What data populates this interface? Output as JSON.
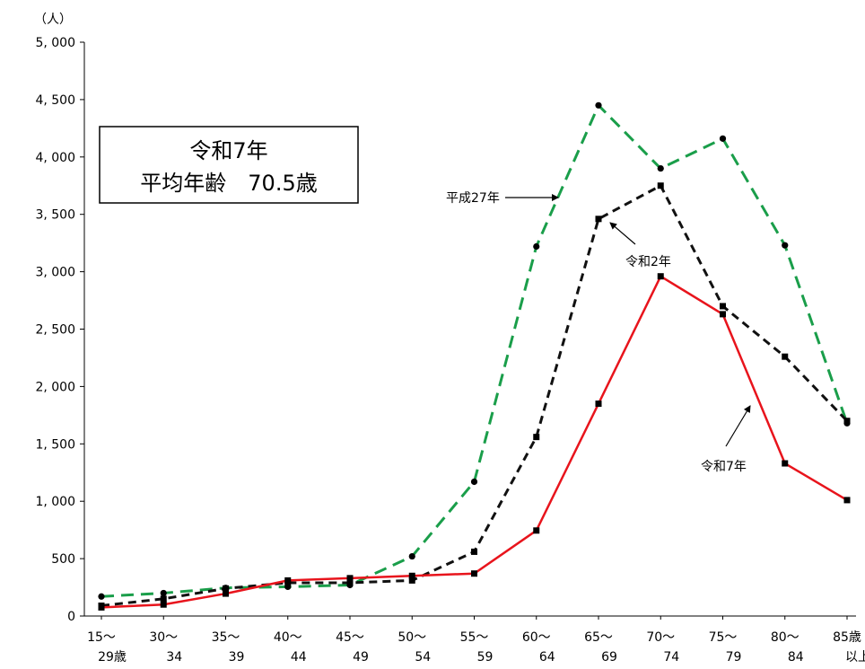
{
  "chart_data": {
    "type": "line",
    "unit_label": "（人）",
    "ylim": [
      0,
      5000
    ],
    "yticks": [
      0,
      500,
      1000,
      1500,
      2000,
      2500,
      3000,
      3500,
      4000,
      4500,
      5000
    ],
    "ytick_labels": [
      "0",
      "500",
      "1, 000",
      "1, 500",
      "2, 000",
      "2, 500",
      "3, 000",
      "3, 500",
      "4, 000",
      "4, 500",
      "5, 000"
    ],
    "categories": [
      "15～29歳",
      "30～34",
      "35～39",
      "40～44",
      "45～49",
      "50～54",
      "55～59",
      "60～64",
      "65～69",
      "70～74",
      "75～79",
      "80～84",
      "85歳以上"
    ],
    "category_lines": [
      [
        "15～",
        "29歳"
      ],
      [
        "30～",
        "34"
      ],
      [
        "35～",
        "39"
      ],
      [
        "40～",
        "44"
      ],
      [
        "45～",
        "49"
      ],
      [
        "50～",
        "54"
      ],
      [
        "55～",
        "59"
      ],
      [
        "60～",
        "64"
      ],
      [
        "65～",
        "69"
      ],
      [
        "70～",
        "74"
      ],
      [
        "75～",
        "79"
      ],
      [
        "80～",
        "84"
      ],
      [
        "85歳",
        "以上"
      ]
    ],
    "grid": false,
    "legend": "none",
    "series": [
      {
        "name": "平成27年",
        "color": "#1a9e4a",
        "dash": "dashed",
        "marker": "circle",
        "values": [
          170,
          200,
          245,
          255,
          270,
          520,
          1170,
          3220,
          4450,
          3900,
          4160,
          3230,
          1680
        ]
      },
      {
        "name": "令和2年",
        "color": "#111111",
        "dash": "dashed",
        "marker": "square",
        "values": [
          90,
          150,
          240,
          290,
          290,
          310,
          560,
          1560,
          3460,
          3750,
          2700,
          2260,
          1700
        ]
      },
      {
        "name": "令和7年",
        "color": "#e8141c",
        "dash": "solid",
        "marker": "square",
        "values": [
          75,
          100,
          195,
          310,
          330,
          350,
          370,
          745,
          1850,
          2960,
          2630,
          1330,
          1010
        ]
      }
    ],
    "info_box": {
      "line1": "令和7年",
      "line2": "平均年齢　70.5歳"
    }
  }
}
